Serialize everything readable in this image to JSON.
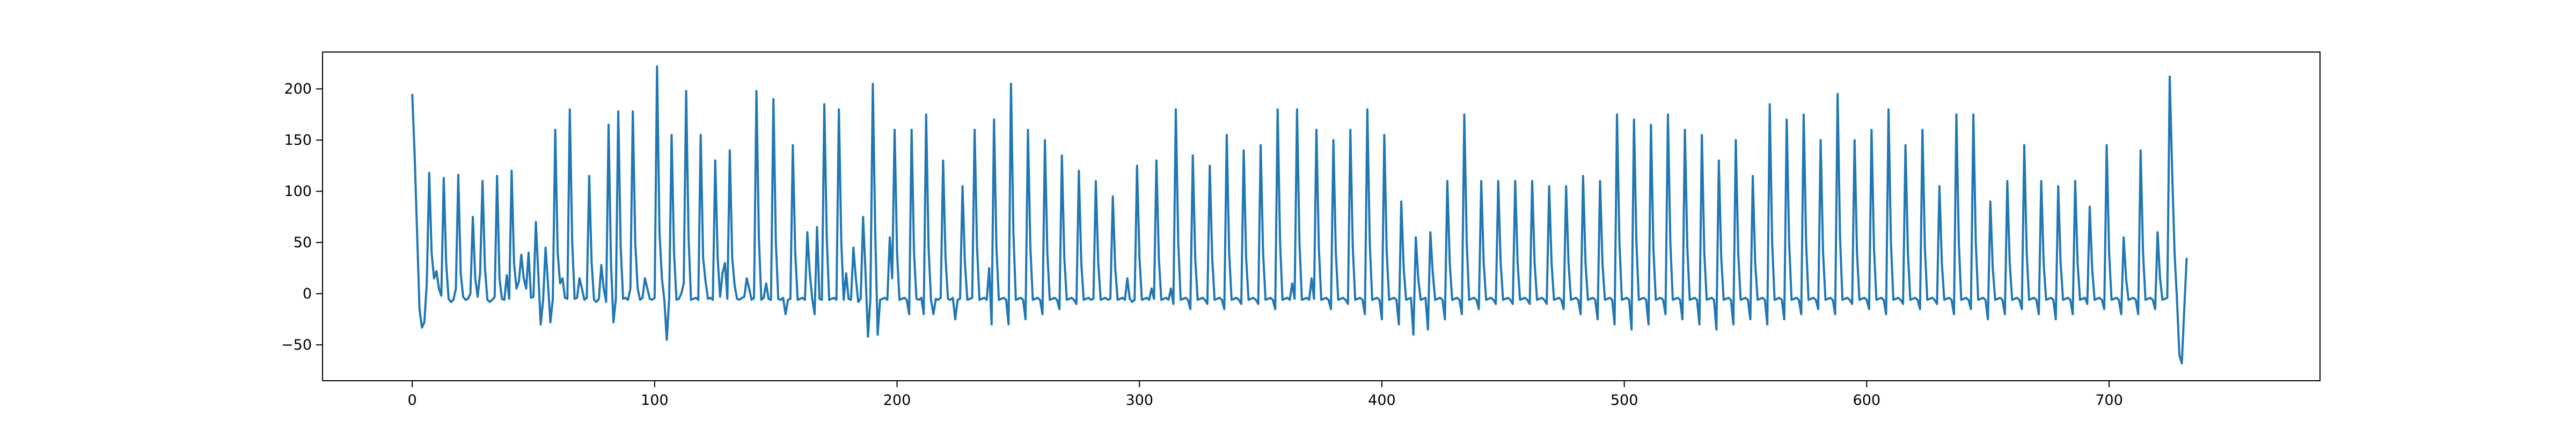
{
  "chart_data": {
    "type": "line",
    "title": "",
    "xlabel": "",
    "ylabel": "",
    "xlim": [
      -37,
      787
    ],
    "ylim": [
      -85,
      236
    ],
    "grid": false,
    "legend": "none",
    "x_ticks": [
      0,
      100,
      200,
      300,
      400,
      500,
      600,
      700
    ],
    "y_ticks": [
      -50,
      0,
      50,
      100,
      150,
      200
    ],
    "series": [
      {
        "color": "#1f77b4",
        "x_start": 0,
        "x_step": 1,
        "values": [
          195,
          135,
          60,
          -15,
          -33,
          -28,
          10,
          118,
          40,
          15,
          22,
          5,
          -2,
          113,
          30,
          -5,
          -8,
          -6,
          5,
          116,
          20,
          -3,
          -6,
          -5,
          0,
          75,
          15,
          -3,
          20,
          110,
          25,
          -6,
          -8,
          -6,
          -3,
          115,
          15,
          -5,
          -6,
          18,
          -5,
          120,
          30,
          5,
          12,
          38,
          15,
          5,
          40,
          -4,
          -3,
          70,
          20,
          -30,
          -6,
          45,
          10,
          -28,
          -5,
          160,
          40,
          10,
          15,
          -4,
          -5,
          180,
          50,
          -5,
          -4,
          15,
          5,
          -6,
          -4,
          115,
          30,
          -6,
          -8,
          -5,
          28,
          5,
          -8,
          165,
          30,
          -28,
          -5,
          178,
          45,
          -5,
          -4,
          -6,
          5,
          178,
          50,
          5,
          -6,
          -4,
          15,
          5,
          -5,
          -6,
          -4,
          222,
          60,
          15,
          -6,
          -45,
          -5,
          155,
          40,
          -6,
          -5,
          0,
          10,
          198,
          55,
          -6,
          -5,
          -4,
          -6,
          155,
          35,
          12,
          -5,
          -4,
          -6,
          130,
          35,
          -3,
          20,
          30,
          -5,
          140,
          35,
          8,
          -5,
          -6,
          -4,
          -3,
          15,
          5,
          -6,
          -4,
          198,
          55,
          -6,
          -4,
          10,
          -5,
          -6,
          190,
          50,
          -5,
          -6,
          -4,
          -20,
          -6,
          -5,
          145,
          40,
          -6,
          -5,
          -4,
          -6,
          60,
          20,
          -5,
          -20,
          65,
          -5,
          -6,
          185,
          55,
          -6,
          -5,
          -4,
          -6,
          180,
          50,
          -6,
          20,
          -5,
          -6,
          45,
          15,
          -8,
          -5,
          75,
          20,
          -42,
          -5,
          205,
          60,
          -40,
          -6,
          -5,
          -4,
          -6,
          55,
          15,
          160,
          40,
          -6,
          -5,
          -4,
          -6,
          -20,
          160,
          40,
          -5,
          -6,
          -4,
          -20,
          175,
          45,
          -6,
          -20,
          -5,
          -6,
          -4,
          130,
          35,
          -5,
          -6,
          -4,
          -25,
          -6,
          -5,
          105,
          30,
          -6,
          -5,
          -4,
          160,
          45,
          -6,
          -5,
          -4,
          -6,
          25,
          -30,
          170,
          45,
          -6,
          -5,
          -4,
          -6,
          -30,
          205,
          60,
          -6,
          -5,
          -4,
          -6,
          -25,
          160,
          45,
          -6,
          -5,
          -4,
          -6,
          -20,
          150,
          40,
          -6,
          -5,
          -4,
          -6,
          -15,
          135,
          35,
          -6,
          -5,
          -4,
          -6,
          -10,
          120,
          30,
          -6,
          -5,
          -4,
          -6,
          -5,
          110,
          30,
          -6,
          -5,
          -4,
          -6,
          -5,
          95,
          25,
          -6,
          -5,
          -4,
          -6,
          15,
          -5,
          -8,
          -6,
          125,
          35,
          -6,
          -5,
          -4,
          -6,
          5,
          -5,
          130,
          35,
          -6,
          -5,
          -4,
          -6,
          5,
          -10,
          180,
          50,
          -6,
          -5,
          -4,
          -6,
          -15,
          135,
          35,
          -6,
          -5,
          -4,
          -6,
          -10,
          125,
          35,
          -6,
          -5,
          -4,
          -6,
          -15,
          155,
          40,
          -6,
          -5,
          -4,
          -6,
          -10,
          140,
          35,
          -6,
          -5,
          -4,
          -6,
          -10,
          145,
          40,
          -6,
          -5,
          -4,
          -6,
          -15,
          180,
          50,
          -6,
          -5,
          -4,
          -6,
          10,
          -5,
          180,
          50,
          -6,
          -5,
          -4,
          -6,
          15,
          -5,
          160,
          45,
          -6,
          -5,
          -4,
          -6,
          -15,
          150,
          40,
          -6,
          -5,
          -4,
          -6,
          -10,
          160,
          45,
          -6,
          -5,
          -4,
          -6,
          -20,
          180,
          50,
          -6,
          -5,
          -4,
          -6,
          -25,
          155,
          40,
          -6,
          -5,
          -4,
          -6,
          -30,
          90,
          25,
          -6,
          -5,
          -4,
          -40,
          55,
          15,
          -6,
          -5,
          -4,
          -35,
          60,
          20,
          -6,
          -5,
          -4,
          -6,
          -25,
          110,
          30,
          -6,
          -5,
          -4,
          -6,
          -20,
          175,
          50,
          -6,
          -5,
          -4,
          -6,
          -15,
          110,
          30,
          -6,
          -5,
          -4,
          -6,
          -10,
          110,
          30,
          -6,
          -5,
          -4,
          -6,
          -10,
          110,
          30,
          -6,
          -5,
          -4,
          -6,
          -10,
          110,
          30,
          -6,
          -5,
          -4,
          -6,
          -10,
          105,
          30,
          -6,
          -5,
          -4,
          -6,
          -15,
          105,
          30,
          -6,
          -5,
          -4,
          -6,
          -20,
          115,
          30,
          -6,
          -5,
          -4,
          -6,
          -25,
          110,
          30,
          -6,
          -5,
          -4,
          -6,
          -30,
          175,
          50,
          -6,
          -5,
          -4,
          -6,
          -35,
          170,
          50,
          -6,
          -5,
          -4,
          -6,
          -30,
          165,
          45,
          -6,
          -5,
          -4,
          -6,
          -20,
          175,
          50,
          -6,
          -5,
          -4,
          -6,
          -25,
          160,
          45,
          -6,
          -5,
          -4,
          -6,
          -30,
          155,
          40,
          -6,
          -5,
          -4,
          -6,
          -35,
          130,
          35,
          -6,
          -5,
          -4,
          -6,
          -30,
          150,
          40,
          -6,
          -5,
          -4,
          -6,
          -25,
          115,
          30,
          -6,
          -5,
          -4,
          -6,
          -30,
          185,
          50,
          -6,
          -5,
          -4,
          -6,
          -25,
          170,
          50,
          -6,
          -5,
          -4,
          -6,
          -20,
          175,
          50,
          -6,
          -5,
          -4,
          -6,
          -15,
          150,
          40,
          -6,
          -5,
          -4,
          -6,
          -20,
          195,
          55,
          -6,
          -5,
          -4,
          -6,
          -10,
          150,
          40,
          -6,
          -5,
          -4,
          -6,
          -15,
          160,
          45,
          -6,
          -5,
          -4,
          -6,
          -20,
          180,
          50,
          -6,
          -5,
          -4,
          -6,
          -10,
          145,
          40,
          -6,
          -5,
          -4,
          -6,
          -15,
          160,
          45,
          -6,
          -5,
          -4,
          -6,
          -10,
          105,
          30,
          -6,
          -5,
          -4,
          -6,
          -20,
          175,
          50,
          -6,
          -5,
          -4,
          -6,
          -15,
          175,
          50,
          -6,
          -5,
          -4,
          -6,
          -25,
          90,
          25,
          -6,
          -5,
          -4,
          -6,
          -20,
          110,
          30,
          -6,
          -5,
          -4,
          -6,
          -15,
          145,
          40,
          -6,
          -5,
          -4,
          -6,
          -20,
          110,
          30,
          -6,
          -5,
          -4,
          -6,
          -25,
          105,
          30,
          -6,
          -5,
          -4,
          -6,
          -20,
          110,
          30,
          -6,
          -5,
          -4,
          -10,
          85,
          25,
          -6,
          -5,
          -4,
          -6,
          -15,
          145,
          40,
          -6,
          -5,
          -4,
          -6,
          -20,
          55,
          15,
          -6,
          -5,
          -4,
          -6,
          -20,
          140,
          40,
          -6,
          -5,
          -4,
          -6,
          -15,
          60,
          15,
          -6,
          -5,
          -4,
          212,
          120,
          40,
          -6,
          -60,
          -68,
          -15,
          35
        ]
      }
    ]
  }
}
